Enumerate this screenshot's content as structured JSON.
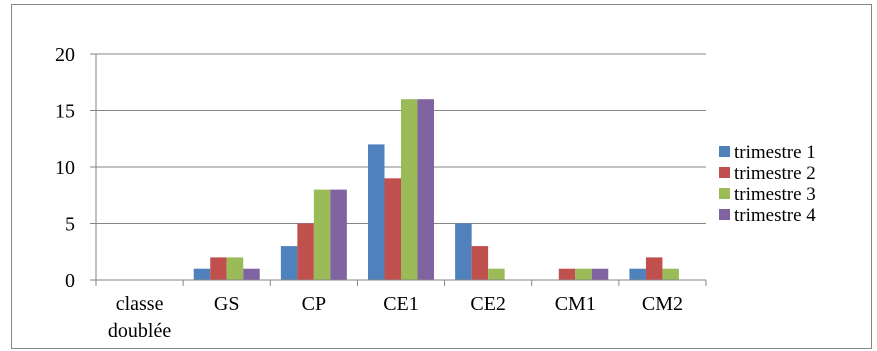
{
  "chart_data": {
    "type": "bar",
    "title": "",
    "xlabel": "",
    "ylabel": "",
    "categories": [
      "classe doublée",
      "GS",
      "CP",
      "CE1",
      "CE2",
      "CM1",
      "CM2"
    ],
    "category_lines": [
      [
        "classe",
        "doublée"
      ],
      [
        "GS"
      ],
      [
        "CP"
      ],
      [
        "CE1"
      ],
      [
        "CE2"
      ],
      [
        "CM1"
      ],
      [
        "CM2"
      ]
    ],
    "series": [
      {
        "name": "trimestre 1",
        "color": "#4F81BD",
        "values": [
          0,
          1,
          3,
          12,
          5,
          0,
          1
        ]
      },
      {
        "name": "trimestre 2",
        "color": "#C0504D",
        "values": [
          0,
          2,
          5,
          9,
          3,
          1,
          2
        ]
      },
      {
        "name": "trimestre 3",
        "color": "#9BBB59",
        "values": [
          0,
          2,
          8,
          16,
          1,
          1,
          1
        ]
      },
      {
        "name": "trimestre 4",
        "color": "#8064A2",
        "values": [
          0,
          1,
          8,
          16,
          0,
          1,
          0
        ]
      }
    ],
    "ylim": [
      0,
      20
    ],
    "yticks": [
      0,
      5,
      10,
      15,
      20
    ],
    "grid": true,
    "legend_position": "right"
  }
}
